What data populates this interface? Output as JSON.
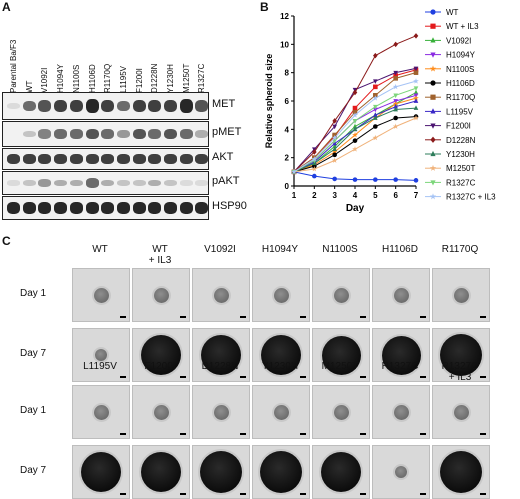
{
  "panelA": {
    "letter": "A",
    "lanes": [
      "Parental Ba/F3",
      "WT",
      "V1092I",
      "H1094Y",
      "N1100S",
      "H1106D",
      "R1170Q",
      "L1195V",
      "F1200I",
      "D1228N",
      "Y1230H",
      "M1250T",
      "R1327C"
    ],
    "blots": [
      "MET",
      "pMET",
      "AKT",
      "pAKT",
      "HSP90"
    ]
  },
  "panelB": {
    "letter": "B"
  },
  "chart_data": {
    "type": "line",
    "xlabel": "Day",
    "ylabel": "Relative spheroid size",
    "x": [
      1,
      2,
      3,
      4,
      5,
      6,
      7
    ],
    "xlim": [
      1,
      7
    ],
    "ylim": [
      0,
      12
    ],
    "yticks": [
      0,
      2,
      4,
      6,
      8,
      10,
      12
    ],
    "xticks": [
      1,
      2,
      3,
      4,
      5,
      6,
      7
    ],
    "legend": "right",
    "series": [
      {
        "name": "WT",
        "color": "#1f3fe0",
        "marker": "circle",
        "values": [
          1,
          0.7,
          0.5,
          0.45,
          0.45,
          0.45,
          0.4
        ]
      },
      {
        "name": "WT + IL3",
        "color": "#e31a1c",
        "marker": "square",
        "values": [
          1,
          2.0,
          3.5,
          5.5,
          7.0,
          7.8,
          8.2
        ]
      },
      {
        "name": "V1092I",
        "color": "#38b03a",
        "marker": "triangle-up",
        "values": [
          1,
          1.6,
          2.8,
          4.2,
          5.0,
          5.8,
          6.6
        ]
      },
      {
        "name": "H1094Y",
        "color": "#8a2be2",
        "marker": "triangle-down",
        "values": [
          1,
          1.8,
          3.2,
          4.6,
          5.4,
          6.0,
          6.4
        ]
      },
      {
        "name": "N1100S",
        "color": "#ff8c1a",
        "marker": "star",
        "values": [
          1,
          1.5,
          2.4,
          3.6,
          4.8,
          5.8,
          6.2
        ]
      },
      {
        "name": "H1106D",
        "color": "#000000",
        "marker": "circle",
        "values": [
          1,
          1.4,
          2.2,
          3.2,
          4.2,
          4.8,
          4.9
        ]
      },
      {
        "name": "R1170Q",
        "color": "#a0622d",
        "marker": "square",
        "values": [
          1,
          2.0,
          3.6,
          5.2,
          6.4,
          7.6,
          8.0
        ]
      },
      {
        "name": "L1195V",
        "color": "#3a28c7",
        "marker": "triangle-up",
        "values": [
          1,
          1.7,
          3.0,
          4.0,
          5.0,
          5.6,
          6.0
        ]
      },
      {
        "name": "F1200I",
        "color": "#4b1470",
        "marker": "triangle-down",
        "values": [
          1,
          2.6,
          4.2,
          6.8,
          7.4,
          8.0,
          8.3
        ]
      },
      {
        "name": "D1228N",
        "color": "#8b1a1a",
        "marker": "diamond",
        "values": [
          1,
          2.4,
          4.6,
          6.6,
          9.2,
          10.0,
          10.6
        ]
      },
      {
        "name": "Y1230H",
        "color": "#2e7d5b",
        "marker": "triangle-up",
        "values": [
          1,
          1.6,
          2.6,
          4.0,
          4.8,
          5.4,
          5.5
        ]
      },
      {
        "name": "M1250T",
        "color": "#f0b27a",
        "marker": "star",
        "values": [
          1,
          1.2,
          1.8,
          2.6,
          3.4,
          4.2,
          4.8
        ]
      },
      {
        "name": "R1327C",
        "color": "#7cd67a",
        "marker": "triangle-down",
        "values": [
          1,
          1.8,
          3.2,
          4.6,
          5.6,
          6.4,
          6.9
        ]
      },
      {
        "name": "R1327C + IL3",
        "color": "#a6c4f5",
        "marker": "star",
        "values": [
          1,
          1.9,
          3.4,
          5.0,
          6.2,
          7.0,
          7.4
        ]
      }
    ]
  },
  "panelC": {
    "letter": "C",
    "row_labels": {
      "day1": "Day 1",
      "day7": "Day 7"
    },
    "block1": [
      {
        "label": "WT",
        "day7_size": 0.1
      },
      {
        "label": "WT\n+ IL3",
        "day7_size": 0.9
      },
      {
        "label": "V1092I",
        "day7_size": 0.9
      },
      {
        "label": "H1094Y",
        "day7_size": 0.9
      },
      {
        "label": "N1100S",
        "day7_size": 0.85
      },
      {
        "label": "H1106D",
        "day7_size": 0.85
      },
      {
        "label": "R1170Q",
        "day7_size": 0.95
      }
    ],
    "block2": [
      {
        "label": "L1195V",
        "day7_size": 0.9
      },
      {
        "label": "F1200I",
        "day7_size": 0.9
      },
      {
        "label": "D1228N",
        "day7_size": 0.95
      },
      {
        "label": "Y1230H",
        "day7_size": 0.95
      },
      {
        "label": "M1250T",
        "day7_size": 0.9
      },
      {
        "label": "R1327C",
        "day7_size": 0.1
      },
      {
        "label": "R1327C\n+ IL3",
        "day7_size": 0.95
      }
    ]
  }
}
